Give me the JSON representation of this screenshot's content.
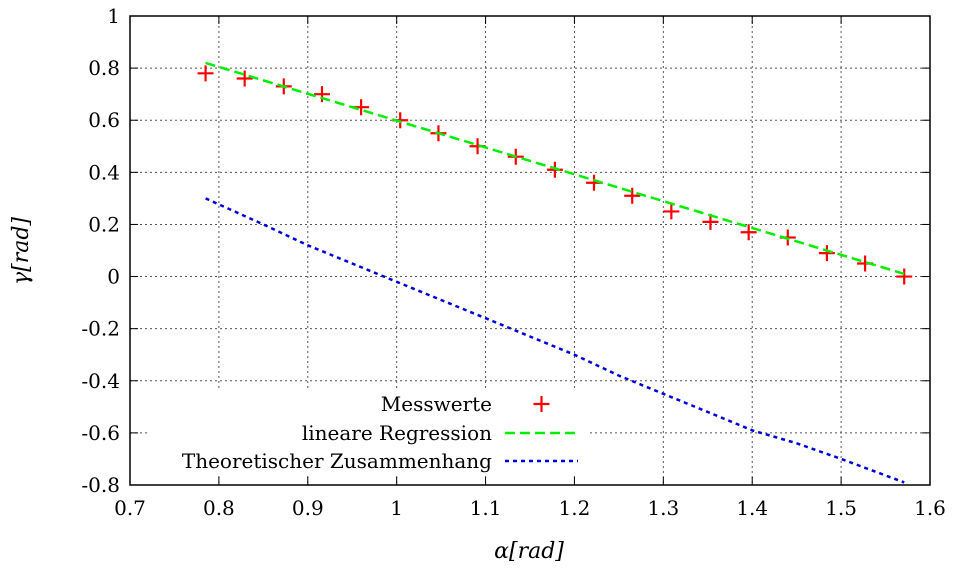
{
  "chart_data": {
    "type": "line",
    "title": "",
    "xlabel": "α[rad]",
    "ylabel": "γ[rad]",
    "xlim": [
      0.7,
      1.6
    ],
    "ylim": [
      -0.8,
      1.0
    ],
    "xticks": [
      "0.7",
      "0.8",
      "0.9",
      "1",
      "1.1",
      "1.2",
      "1.3",
      "1.4",
      "1.5",
      "1.6"
    ],
    "yticks": [
      "-0.8",
      "-0.6",
      "-0.4",
      "-0.2",
      "0",
      "0.2",
      "0.4",
      "0.6",
      "0.8",
      "1"
    ],
    "grid": true,
    "legend_position": "bottom-center",
    "series": [
      {
        "name": "Messwerte",
        "kind": "points",
        "marker": "plus",
        "color": "#ff0000",
        "x": [
          0.785,
          0.829,
          0.873,
          0.916,
          0.96,
          1.004,
          1.047,
          1.091,
          1.134,
          1.178,
          1.222,
          1.265,
          1.309,
          1.353,
          1.396,
          1.44,
          1.484,
          1.527,
          1.571
        ],
        "y": [
          0.78,
          0.76,
          0.73,
          0.7,
          0.65,
          0.6,
          0.55,
          0.5,
          0.46,
          0.41,
          0.36,
          0.31,
          0.25,
          0.21,
          0.17,
          0.15,
          0.09,
          0.05,
          0.0
        ]
      },
      {
        "name": "lineare Regression",
        "kind": "line",
        "dash": "dashed",
        "color": "#00ee00",
        "x": [
          0.785,
          1.571
        ],
        "y": [
          0.82,
          0.01
        ]
      },
      {
        "name": "Theoretischer Zusammenhang",
        "kind": "line",
        "dash": "dotted",
        "color": "#0000dd",
        "x": [
          0.785,
          0.85,
          0.9,
          0.95,
          1.0,
          1.05,
          1.1,
          1.15,
          1.2,
          1.25,
          1.3,
          1.35,
          1.4,
          1.45,
          1.5,
          1.571
        ],
        "y": [
          0.3,
          0.2,
          0.12,
          0.05,
          -0.02,
          -0.09,
          -0.16,
          -0.23,
          -0.3,
          -0.38,
          -0.45,
          -0.52,
          -0.59,
          -0.64,
          -0.7,
          -0.79
        ]
      }
    ]
  }
}
